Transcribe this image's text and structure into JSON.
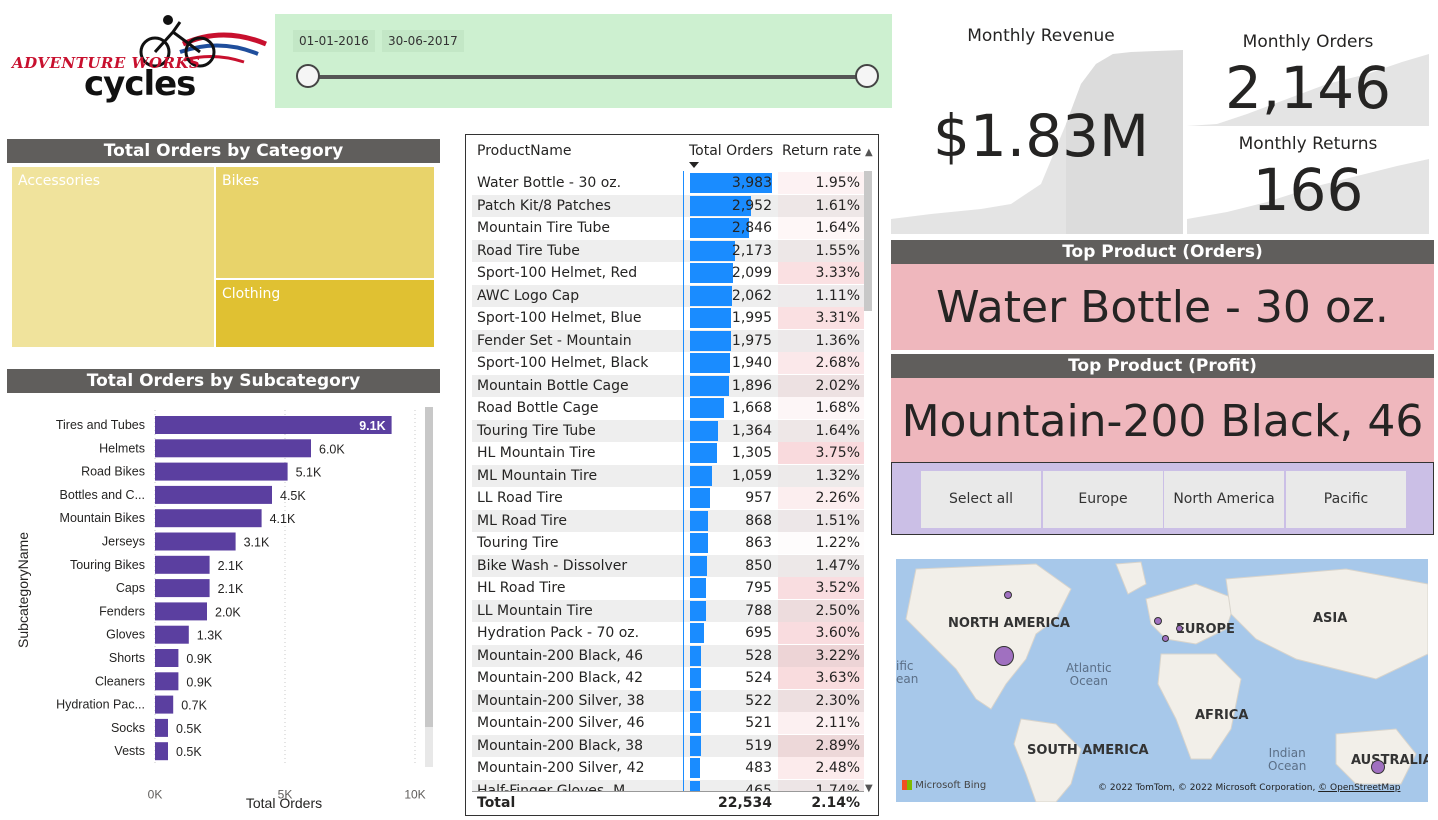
{
  "logo": {
    "line1": "ADVENTURE WORKS",
    "line2": "cycles"
  },
  "date_slicer": {
    "start": "01-01-2016",
    "end": "30-06-2017"
  },
  "treemap": {
    "title": "Total Orders by Category",
    "tiles": [
      {
        "label": "Accessories",
        "color": "#f0e39c"
      },
      {
        "label": "Bikes",
        "color": "#e8d36a"
      },
      {
        "label": "Clothing",
        "color": "#e0c132"
      }
    ]
  },
  "subcategory_chart": {
    "title": "Total Orders by Subcategory",
    "chart_data": {
      "type": "bar",
      "orientation": "horizontal",
      "categories": [
        "Tires and Tubes",
        "Helmets",
        "Road Bikes",
        "Bottles and C...",
        "Mountain Bikes",
        "Jerseys",
        "Touring Bikes",
        "Caps",
        "Fenders",
        "Gloves",
        "Shorts",
        "Cleaners",
        "Hydration Pac...",
        "Socks",
        "Vests"
      ],
      "values": [
        9100,
        6000,
        5100,
        4500,
        4100,
        3100,
        2100,
        2100,
        2000,
        1300,
        900,
        900,
        700,
        500,
        500
      ],
      "data_labels": [
        "9.1K",
        "6.0K",
        "5.1K",
        "4.5K",
        "4.1K",
        "3.1K",
        "2.1K",
        "2.1K",
        "2.0K",
        "1.3K",
        "0.9K",
        "0.9K",
        "0.7K",
        "0.5K",
        "0.5K"
      ],
      "xlabel": "Total Orders",
      "ylabel": "SubcategoryName",
      "xticks": [
        "0K",
        "5K",
        "10K"
      ],
      "xlim": [
        0,
        10000
      ],
      "color": "#5b3fa0"
    }
  },
  "table": {
    "headers": {
      "product": "ProductName",
      "orders": "Total Orders",
      "return_rate": "Return rate"
    },
    "rows": [
      {
        "product": "Water Bottle - 30 oz.",
        "orders": "3,983",
        "rr": "1.95%",
        "o": 3983,
        "r": 1.95
      },
      {
        "product": "Patch Kit/8 Patches",
        "orders": "2,952",
        "rr": "1.61%",
        "o": 2952,
        "r": 1.61
      },
      {
        "product": "Mountain Tire Tube",
        "orders": "2,846",
        "rr": "1.64%",
        "o": 2846,
        "r": 1.64
      },
      {
        "product": "Road Tire Tube",
        "orders": "2,173",
        "rr": "1.55%",
        "o": 2173,
        "r": 1.55
      },
      {
        "product": "Sport-100 Helmet, Red",
        "orders": "2,099",
        "rr": "3.33%",
        "o": 2099,
        "r": 3.33
      },
      {
        "product": "AWC Logo Cap",
        "orders": "2,062",
        "rr": "1.11%",
        "o": 2062,
        "r": 1.11
      },
      {
        "product": "Sport-100 Helmet, Blue",
        "orders": "1,995",
        "rr": "3.31%",
        "o": 1995,
        "r": 3.31
      },
      {
        "product": "Fender Set - Mountain",
        "orders": "1,975",
        "rr": "1.36%",
        "o": 1975,
        "r": 1.36
      },
      {
        "product": "Sport-100 Helmet, Black",
        "orders": "1,940",
        "rr": "2.68%",
        "o": 1940,
        "r": 2.68
      },
      {
        "product": "Mountain Bottle Cage",
        "orders": "1,896",
        "rr": "2.02%",
        "o": 1896,
        "r": 2.02
      },
      {
        "product": "Road Bottle Cage",
        "orders": "1,668",
        "rr": "1.68%",
        "o": 1668,
        "r": 1.68
      },
      {
        "product": "Touring Tire Tube",
        "orders": "1,364",
        "rr": "1.64%",
        "o": 1364,
        "r": 1.64
      },
      {
        "product": "HL Mountain Tire",
        "orders": "1,305",
        "rr": "3.75%",
        "o": 1305,
        "r": 3.75
      },
      {
        "product": "ML Mountain Tire",
        "orders": "1,059",
        "rr": "1.32%",
        "o": 1059,
        "r": 1.32
      },
      {
        "product": "LL Road Tire",
        "orders": "957",
        "rr": "2.26%",
        "o": 957,
        "r": 2.26
      },
      {
        "product": "ML Road Tire",
        "orders": "868",
        "rr": "1.51%",
        "o": 868,
        "r": 1.51
      },
      {
        "product": "Touring Tire",
        "orders": "863",
        "rr": "1.22%",
        "o": 863,
        "r": 1.22
      },
      {
        "product": "Bike Wash - Dissolver",
        "orders": "850",
        "rr": "1.47%",
        "o": 850,
        "r": 1.47
      },
      {
        "product": "HL Road Tire",
        "orders": "795",
        "rr": "3.52%",
        "o": 795,
        "r": 3.52
      },
      {
        "product": "LL Mountain Tire",
        "orders": "788",
        "rr": "2.50%",
        "o": 788,
        "r": 2.5
      },
      {
        "product": "Hydration Pack - 70 oz.",
        "orders": "695",
        "rr": "3.60%",
        "o": 695,
        "r": 3.6
      },
      {
        "product": "Mountain-200 Black, 46",
        "orders": "528",
        "rr": "3.22%",
        "o": 528,
        "r": 3.22
      },
      {
        "product": "Mountain-200 Black, 42",
        "orders": "524",
        "rr": "3.63%",
        "o": 524,
        "r": 3.63
      },
      {
        "product": "Mountain-200 Silver, 38",
        "orders": "522",
        "rr": "2.30%",
        "o": 522,
        "r": 2.3
      },
      {
        "product": "Mountain-200 Silver, 46",
        "orders": "521",
        "rr": "2.11%",
        "o": 521,
        "r": 2.11
      },
      {
        "product": "Mountain-200 Black, 38",
        "orders": "519",
        "rr": "2.89%",
        "o": 519,
        "r": 2.89
      },
      {
        "product": "Mountain-200 Silver, 42",
        "orders": "483",
        "rr": "2.48%",
        "o": 483,
        "r": 2.48
      },
      {
        "product": "Half-Finger Gloves, M",
        "orders": "465",
        "rr": "1.74%",
        "o": 465,
        "r": 1.74
      }
    ],
    "total": {
      "label": "Total",
      "orders": "22,534",
      "rr": "2.14%"
    },
    "bar_color": "#1a8cff",
    "max_orders": 3983
  },
  "kpis": {
    "revenue": {
      "label": "Monthly Revenue",
      "value": "$1.83M"
    },
    "orders": {
      "label": "Monthly Orders",
      "value": "2,146"
    },
    "returns": {
      "label": "Monthly Returns",
      "value": "166"
    }
  },
  "top_orders": {
    "title": "Top Product (Orders)",
    "value": "Water Bottle - 30 oz."
  },
  "top_profit": {
    "title": "Top Product (Profit)",
    "value": "Mountain-200 Black, 46"
  },
  "region_slicer": {
    "buttons": [
      "Select all",
      "Europe",
      "North America",
      "Pacific"
    ]
  },
  "map": {
    "continents": [
      "NORTH AMERICA",
      "EUROPE",
      "ASIA",
      "AFRICA",
      "SOUTH AMERICA",
      "AUSTRALIA"
    ],
    "oceans": [
      "Atlantic\nOcean",
      "Indian\nOcean",
      "ific\nean"
    ],
    "attribution": "© 2022 TomTom, © 2022 Microsoft Corporation,",
    "attribution_link": "© OpenStreetMap",
    "bing": "Microsoft Bing"
  }
}
